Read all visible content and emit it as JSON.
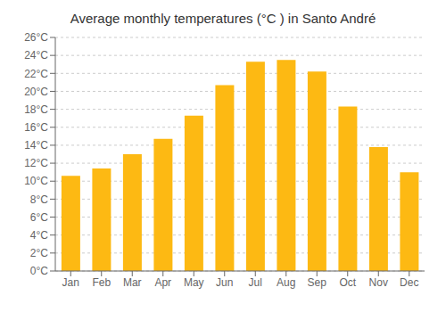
{
  "chart_data": {
    "type": "bar",
    "title": "Average monthly temperatures (°C ) in Santo André",
    "categories": [
      "Jan",
      "Feb",
      "Mar",
      "Apr",
      "May",
      "Jun",
      "Jul",
      "Aug",
      "Sep",
      "Oct",
      "Nov",
      "Dec"
    ],
    "values": [
      10.6,
      11.4,
      13.0,
      14.7,
      17.3,
      20.7,
      23.3,
      23.5,
      22.2,
      18.3,
      13.8,
      11.0
    ],
    "color": "#FDB913",
    "ylim": [
      0,
      26
    ],
    "yticks": [
      {
        "value": 0,
        "label": "0°C"
      },
      {
        "value": 2,
        "label": "2°C"
      },
      {
        "value": 4,
        "label": "4°C"
      },
      {
        "value": 6,
        "label": "6°C"
      },
      {
        "value": 8,
        "label": "8°C"
      },
      {
        "value": 10,
        "label": "10°C"
      },
      {
        "value": 12,
        "label": "12°C"
      },
      {
        "value": 14,
        "label": "14°C"
      },
      {
        "value": 16,
        "label": "16°C"
      },
      {
        "value": 18,
        "label": "18°C"
      },
      {
        "value": 20,
        "label": "20°C"
      },
      {
        "value": 22,
        "label": "22°C"
      },
      {
        "value": 24,
        "label": "24°C"
      },
      {
        "value": 26,
        "label": "26°C"
      }
    ],
    "grid": true
  }
}
